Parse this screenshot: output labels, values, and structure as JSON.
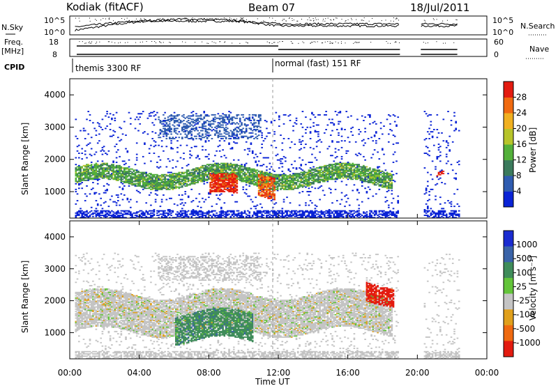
{
  "header": {
    "radar": "Kodiak (fitACF)",
    "beam": "Beam 07",
    "date": "18/Jul/2011"
  },
  "top_panels": {
    "nsky_label": "N.Sky",
    "nsky_ticks": [
      "10^5",
      "10^0"
    ],
    "nsearch_label": "N.Search",
    "nsearch_ticks": [
      "10^5",
      "10^0"
    ],
    "freq_label_1": "Freq.",
    "freq_label_2": "[MHz]",
    "freq_ticks": [
      "18",
      "8"
    ],
    "nave_label": "Nave",
    "nave_ticks": [
      "60",
      "0"
    ],
    "cpid_label": "CPID",
    "cpid_modes": [
      "themis 3300 RF",
      "normal (fast) 151 RF"
    ]
  },
  "x_axis": {
    "label": "Time UT",
    "ticks": [
      "00:00",
      "04:00",
      "08:00",
      "12:00",
      "16:00",
      "20:00",
      "00:00"
    ]
  },
  "power_panel": {
    "ylabel": "Slant Range [km]",
    "yticks": [
      "1000",
      "2000",
      "3000",
      "4000"
    ],
    "colorbar_label": "Power [dB]",
    "colorbar_ticks": [
      "4",
      "8",
      "12",
      "16",
      "20",
      "24",
      "28"
    ]
  },
  "velocity_panel": {
    "ylabel": "Slant Range [km]",
    "yticks": [
      "1000",
      "2000",
      "3000",
      "4000"
    ],
    "colorbar_label": "Velocity [m s⁻¹]",
    "colorbar_ticks": [
      "1000",
      "500",
      "100",
      "25",
      "-25",
      "-100",
      "-500",
      "-1000"
    ]
  },
  "chart_data": [
    {
      "type": "line",
      "title": "Kodiak (fitACF) Beam 07 18/Jul/2011",
      "x_range_hours": [
        0,
        24
      ],
      "x_ticks": [
        "00:00",
        "04:00",
        "08:00",
        "12:00",
        "16:00",
        "20:00",
        "00:00"
      ],
      "y_scale": "log",
      "left_axis": "N.Sky",
      "right_axis": "N.Search",
      "y_ticks": [
        "10^0",
        "10^5"
      ],
      "data_gap_hours": [
        19.0,
        20.2
      ]
    },
    {
      "type": "line",
      "left_axis": "Freq. [MHz]",
      "left_range": [
        8,
        18
      ],
      "right_axis": "Nave",
      "right_range": [
        0,
        60
      ],
      "data_gap_hours": [
        19.0,
        20.2
      ]
    },
    {
      "type": "table",
      "label": "CPID",
      "segments": [
        {
          "start_hour": 0.4,
          "end_hour": 12.0,
          "mode": "themis 3300 RF"
        },
        {
          "start_hour": 12.0,
          "end_hour": 24.0,
          "mode": "normal (fast) 151 RF"
        }
      ]
    },
    {
      "type": "heatmap",
      "quantity": "Power",
      "units": "dB",
      "ylabel": "Slant Range [km]",
      "xlabel": "Time UT",
      "y_range_km": [
        180,
        4500
      ],
      "color_range": [
        0,
        30
      ],
      "colorbar_ticks": [
        4,
        8,
        12,
        16,
        20,
        24,
        28
      ],
      "colors": [
        "#0a23d6",
        "#2f5cb0",
        "#3b7a5c",
        "#53b03a",
        "#b7c42a",
        "#f0b020",
        "#f06a10",
        "#e31b10"
      ],
      "features": [
        {
          "time_hours": [
            0.3,
            18.5
          ],
          "range_km": [
            1200,
            1700
          ],
          "power_db": 12
        },
        {
          "time_hours": [
            8.0,
            9.6
          ],
          "range_km": [
            800,
            1400
          ],
          "power_db": 28
        },
        {
          "time_hours": [
            10.8,
            11.8
          ],
          "range_km": [
            900,
            1600
          ],
          "power_db": 25
        },
        {
          "time_hours": [
            21.0,
            21.5
          ],
          "range_km": [
            1450,
            1550
          ],
          "power_db": 28
        }
      ],
      "data_gap_hours": [
        19.0,
        20.2
      ]
    },
    {
      "type": "heatmap",
      "quantity": "Velocity",
      "units": "m s⁻¹",
      "ylabel": "Slant Range [km]",
      "xlabel": "Time UT",
      "y_range_km": [
        180,
        4500
      ],
      "colorbar_ticks": [
        1000,
        500,
        100,
        25,
        -25,
        -100,
        -500,
        -1000
      ],
      "colors": [
        "#1a2bd0",
        "#3a63a8",
        "#3f8c5a",
        "#63c43a",
        "#c4c4c4",
        "#e0a01c",
        "#ef6a10",
        "#e31b10"
      ],
      "features": [
        {
          "time_hours": [
            0.3,
            18.5
          ],
          "range_km": [
            1000,
            2200
          ],
          "velocity": 0
        },
        {
          "time_hours": [
            6.0,
            10.5
          ],
          "range_km": [
            700,
            1600
          ],
          "velocity": 150
        },
        {
          "time_hours": [
            17.0,
            18.6
          ],
          "range_km": [
            1900,
            2500
          ],
          "velocity": -700
        }
      ],
      "data_gap_hours": [
        19.0,
        20.2
      ]
    }
  ]
}
